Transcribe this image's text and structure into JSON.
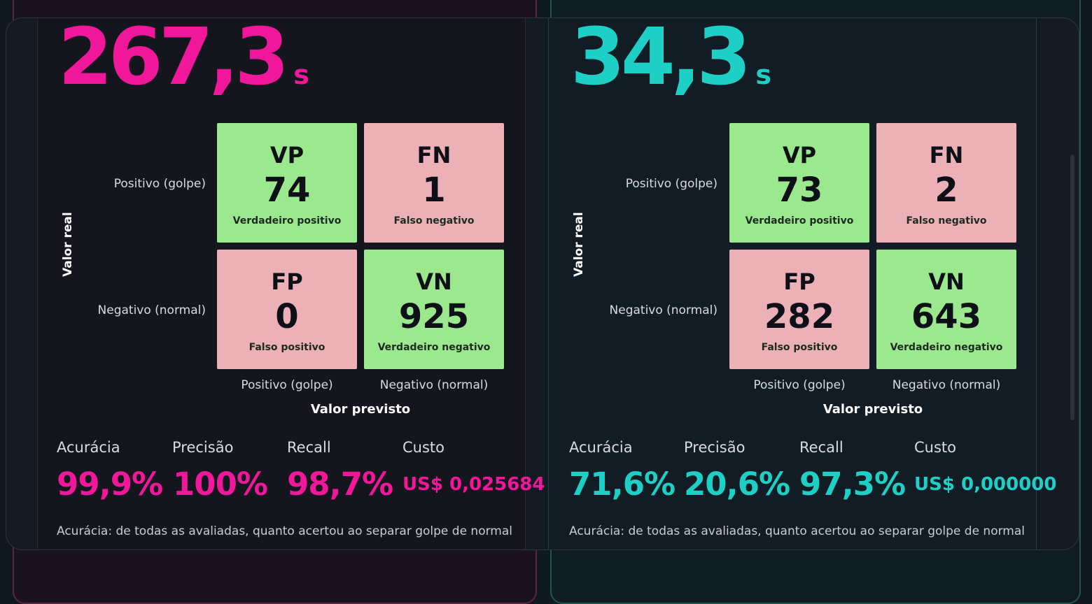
{
  "left": {
    "time_value": "267,3",
    "time_unit": "s",
    "accent": "#f0179b",
    "matrix": {
      "y_axis_label": "Valor real",
      "x_axis_label": "Valor previsto",
      "row_labels": [
        "Positivo (golpe)",
        "Negativo (normal)"
      ],
      "col_labels": [
        "Positivo (golpe)",
        "Negativo (normal)"
      ],
      "cells": [
        {
          "abbr": "VP",
          "value": "74",
          "desc": "Verdadeiro positivo"
        },
        {
          "abbr": "FN",
          "value": "1",
          "desc": "Falso negativo"
        },
        {
          "abbr": "FP",
          "value": "0",
          "desc": "Falso positivo"
        },
        {
          "abbr": "VN",
          "value": "925",
          "desc": "Verdadeiro negativo"
        }
      ]
    },
    "metrics": [
      {
        "label": "Acurácia",
        "value": "99,9%"
      },
      {
        "label": "Precisão",
        "value": "100%"
      },
      {
        "label": "Recall",
        "value": "98,7%"
      },
      {
        "label": "Custo",
        "value": "US$ 0,025684"
      }
    ],
    "footnote": "Acurácia: de todas as avaliadas, quanto acertou ao separar golpe de normal"
  },
  "right": {
    "time_value": "34,3",
    "time_unit": "s",
    "accent": "#1ecfc6",
    "matrix": {
      "y_axis_label": "Valor real",
      "x_axis_label": "Valor previsto",
      "row_labels": [
        "Positivo (golpe)",
        "Negativo (normal)"
      ],
      "col_labels": [
        "Positivo (golpe)",
        "Negativo (normal)"
      ],
      "cells": [
        {
          "abbr": "VP",
          "value": "73",
          "desc": "Verdadeiro positivo"
        },
        {
          "abbr": "FN",
          "value": "2",
          "desc": "Falso negativo"
        },
        {
          "abbr": "FP",
          "value": "282",
          "desc": "Falso positivo"
        },
        {
          "abbr": "VN",
          "value": "643",
          "desc": "Verdadeiro negativo"
        }
      ]
    },
    "metrics": [
      {
        "label": "Acurácia",
        "value": "71,6%"
      },
      {
        "label": "Precisão",
        "value": "20,6%"
      },
      {
        "label": "Recall",
        "value": "97,3%"
      },
      {
        "label": "Custo",
        "value": "US$ 0,000000"
      }
    ],
    "footnote": "Acurácia: de todas as avaliadas, quanto acertou ao separar golpe de normal"
  }
}
